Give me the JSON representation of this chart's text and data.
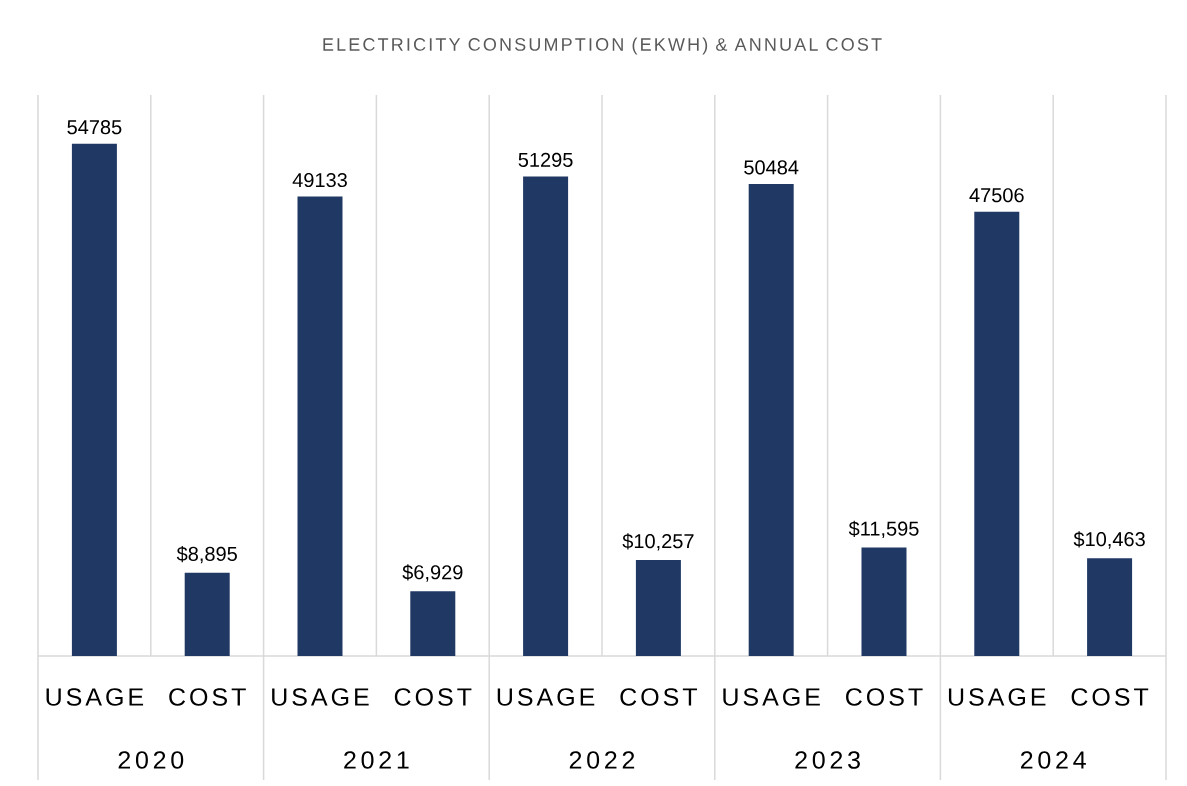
{
  "chart_data": {
    "type": "bar",
    "title": "ELECTRICITY CONSUMPTION (EKWH) & ANNUAL COST",
    "categories": [
      "USAGE",
      "COST",
      "USAGE",
      "COST",
      "USAGE",
      "COST",
      "USAGE",
      "COST",
      "USAGE",
      "COST"
    ],
    "values": [
      54785,
      8895,
      49133,
      6929,
      51295,
      10257,
      50484,
      11595,
      47506,
      10463
    ],
    "value_labels": [
      "54785",
      "$8,895",
      "49133",
      "$6,929",
      "51295",
      "$10,257",
      "50484",
      "$11,595",
      "47506",
      "$10,463"
    ],
    "color": "#203864",
    "ylim": [
      0,
      60000
    ],
    "grid": "x",
    "annotations": [
      "2020",
      "2021",
      "2022",
      "2023",
      "2024"
    ]
  }
}
